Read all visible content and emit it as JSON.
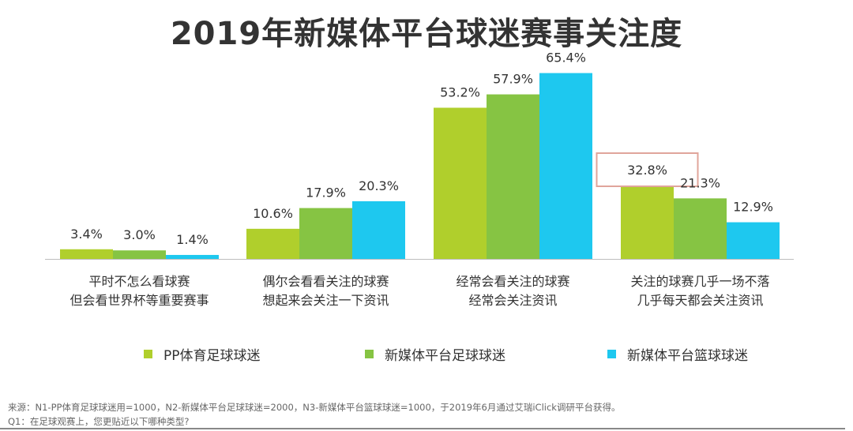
{
  "title": "2019年新媒体平台球迷赛事关注度",
  "chart_data": {
    "type": "bar",
    "categories": [
      [
        "平时不怎么看球赛",
        "但会看世界杯等重要赛事"
      ],
      [
        "偶尔会看看关注的球赛",
        "想起来会关注一下资讯"
      ],
      [
        "经常会看关注的球赛",
        "经常会关注资讯"
      ],
      [
        "关注的球赛几乎一场不落",
        "几乎每天都会关注资讯"
      ]
    ],
    "series": [
      {
        "name": "PP体育足球球迷",
        "color": "#b0cf2c",
        "values": [
          3.4,
          10.6,
          53.2,
          32.8
        ],
        "labels": [
          "3.4%",
          "10.6%",
          "53.2%",
          "32.8%"
        ]
      },
      {
        "name": "新媒体平台足球球迷",
        "color": "#86c443",
        "values": [
          3.0,
          17.9,
          57.9,
          21.3
        ],
        "labels": [
          "3.0%",
          "17.9%",
          "57.9%",
          "21.3%"
        ]
      },
      {
        "name": "新媒体平台篮球球迷",
        "color": "#1ec8ef",
        "values": [
          1.4,
          20.3,
          65.4,
          12.9
        ],
        "labels": [
          "1.4%",
          "20.3%",
          "65.4%",
          "12.9%"
        ]
      }
    ],
    "highlight": {
      "series": 0,
      "category": 3,
      "color": "#e0a59b"
    },
    "ylim": [
      0,
      70
    ],
    "grid": false,
    "legend_position": "bottom"
  },
  "footnote": {
    "line1": "来源：N1-PP体育足球球迷用=1000，N2-新媒体平台足球球迷=2000，N3-新媒体平台篮球球迷=1000，于2019年6月通过艾瑞iClick调研平台获得。",
    "line2": "Q1：在足球观赛上，您更贴近以下哪种类型?"
  }
}
